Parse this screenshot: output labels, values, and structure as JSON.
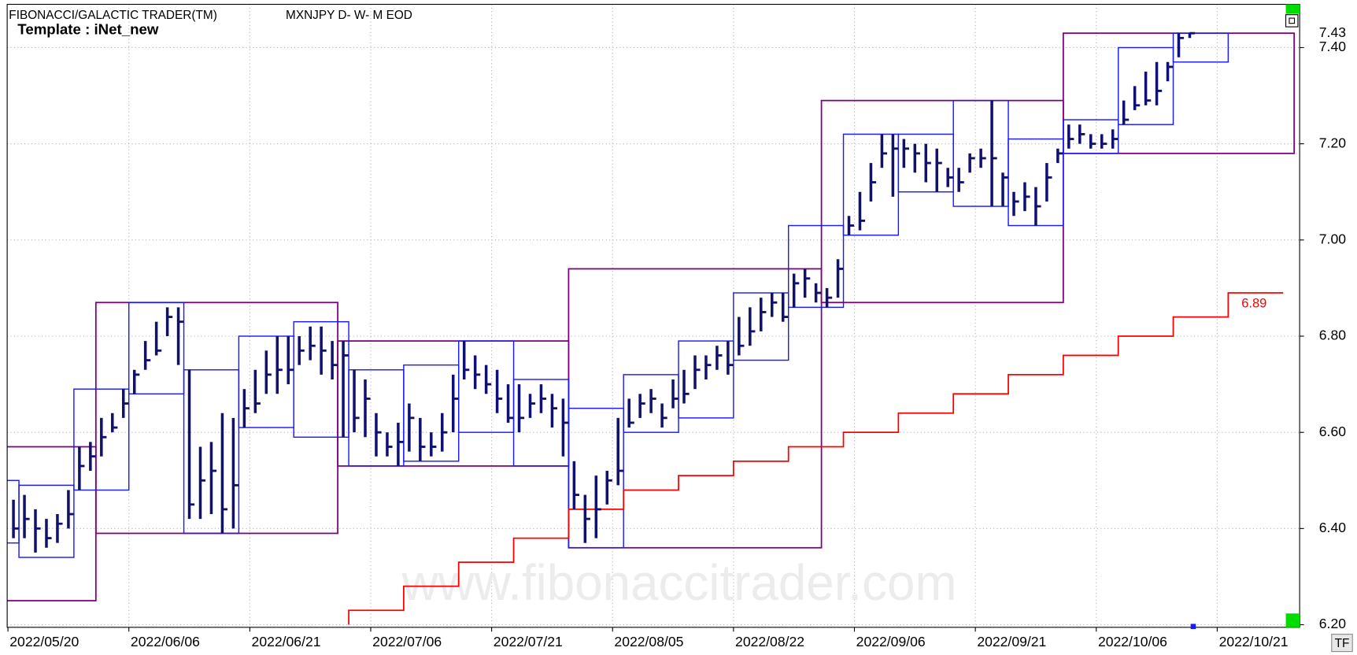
{
  "chart_data": {
    "type": "ohlc",
    "title": "FIBONACCI/GALACTIC TRADER(TM)",
    "subtitle": "MXNJPY D- W- M EOD",
    "template": "Template : iNet_new",
    "watermark": "www.fibonaccitrader.com",
    "button": "TF",
    "high": [
      6.46,
      6.47,
      6.44,
      6.42,
      6.43,
      6.48,
      6.57,
      6.58,
      6.63,
      6.64,
      6.69,
      6.73,
      6.79,
      6.83,
      6.86,
      6.86,
      6.73,
      6.57,
      6.58,
      6.64,
      6.63,
      6.69,
      6.73,
      6.77,
      6.8,
      6.8,
      6.8,
      6.82,
      6.82,
      6.79,
      6.79,
      6.73,
      6.71,
      6.64,
      6.6,
      6.62,
      6.66,
      6.63,
      6.6,
      6.64,
      6.72,
      6.79,
      6.76,
      6.74,
      6.73,
      6.7,
      6.7,
      6.68,
      6.7,
      6.68,
      6.67,
      6.54,
      6.47,
      6.51,
      6.52,
      6.63,
      6.67,
      6.68,
      6.69,
      6.66,
      6.71,
      6.73,
      6.76,
      6.76,
      6.78,
      6.79,
      6.84,
      6.86,
      6.88,
      6.89,
      6.89,
      6.93,
      6.94,
      6.91,
      6.9,
      6.96,
      7.05,
      7.1,
      7.16,
      7.22,
      7.22,
      7.21,
      7.2,
      7.2,
      7.19,
      7.15,
      7.15,
      7.18,
      7.19,
      7.29,
      7.14,
      7.1,
      7.12,
      7.11,
      7.16,
      7.19,
      7.24,
      7.24,
      7.22,
      7.22,
      7.23,
      7.29,
      7.32,
      7.35,
      7.37,
      7.37,
      7.43,
      7.43
    ],
    "low": [
      6.38,
      6.38,
      6.35,
      6.36,
      6.37,
      6.4,
      6.48,
      6.52,
      6.55,
      6.6,
      6.63,
      6.68,
      6.73,
      6.76,
      6.8,
      6.74,
      6.42,
      6.42,
      6.43,
      6.39,
      6.4,
      6.61,
      6.64,
      6.68,
      6.68,
      6.7,
      6.74,
      6.75,
      6.72,
      6.71,
      6.59,
      6.6,
      6.59,
      6.55,
      6.55,
      6.53,
      6.56,
      6.54,
      6.55,
      6.56,
      6.6,
      6.71,
      6.69,
      6.68,
      6.64,
      6.62,
      6.6,
      6.63,
      6.64,
      6.61,
      6.55,
      6.44,
      6.37,
      6.38,
      6.45,
      6.49,
      6.61,
      6.63,
      6.64,
      6.61,
      6.65,
      6.66,
      6.69,
      6.71,
      6.73,
      6.72,
      6.76,
      6.78,
      6.81,
      6.84,
      6.83,
      6.86,
      6.88,
      6.87,
      6.86,
      6.88,
      7.01,
      7.02,
      7.08,
      7.15,
      7.09,
      7.15,
      7.14,
      7.12,
      7.1,
      7.11,
      7.1,
      7.14,
      7.15,
      7.07,
      7.07,
      7.05,
      7.06,
      7.03,
      7.08,
      7.16,
      7.19,
      7.2,
      7.19,
      7.19,
      7.19,
      7.24,
      7.27,
      7.28,
      7.28,
      7.33,
      7.38,
      7.42
    ],
    "close": [
      6.4,
      6.42,
      6.4,
      6.38,
      6.41,
      6.43,
      6.53,
      6.55,
      6.59,
      6.61,
      6.66,
      6.72,
      6.75,
      6.77,
      6.84,
      6.83,
      6.45,
      6.5,
      6.52,
      6.44,
      6.49,
      6.65,
      6.66,
      6.72,
      6.73,
      6.73,
      6.77,
      6.78,
      6.77,
      6.74,
      6.76,
      6.63,
      6.67,
      6.6,
      6.57,
      6.58,
      6.63,
      6.57,
      6.57,
      6.6,
      6.67,
      6.73,
      6.72,
      6.7,
      6.67,
      6.63,
      6.63,
      6.66,
      6.67,
      6.65,
      6.62,
      6.47,
      6.42,
      6.44,
      6.5,
      6.52,
      6.62,
      6.66,
      6.67,
      6.63,
      6.67,
      6.68,
      6.73,
      6.74,
      6.76,
      6.74,
      6.78,
      6.81,
      6.85,
      6.87,
      6.84,
      6.91,
      6.92,
      6.89,
      6.88,
      6.94,
      7.03,
      7.04,
      7.12,
      7.18,
      7.19,
      7.19,
      7.18,
      7.16,
      7.16,
      7.13,
      7.12,
      7.17,
      7.17,
      7.17,
      7.13,
      7.08,
      7.09,
      7.07,
      7.13,
      7.18,
      7.21,
      7.22,
      7.2,
      7.2,
      7.21,
      7.25,
      7.28,
      7.29,
      7.31,
      7.36,
      7.42,
      7.43
    ],
    "weekly_boxes": [
      {
        "first": -4,
        "last": 0,
        "high": 6.5,
        "low": 6.37
      },
      {
        "first": 1,
        "last": 5,
        "high": 6.49,
        "low": 6.34
      },
      {
        "first": 6,
        "last": 10,
        "high": 6.69,
        "low": 6.48
      },
      {
        "first": 11,
        "last": 15,
        "high": 6.87,
        "low": 6.68
      },
      {
        "first": 16,
        "last": 20,
        "high": 6.73,
        "low": 6.39
      },
      {
        "first": 21,
        "last": 25,
        "high": 6.8,
        "low": 6.61
      },
      {
        "first": 26,
        "last": 30,
        "high": 6.83,
        "low": 6.59
      },
      {
        "first": 31,
        "last": 35,
        "high": 6.73,
        "low": 6.53
      },
      {
        "first": 36,
        "last": 40,
        "high": 6.74,
        "low": 6.54
      },
      {
        "first": 41,
        "last": 45,
        "high": 6.79,
        "low": 6.6
      },
      {
        "first": 46,
        "last": 50,
        "high": 6.71,
        "low": 6.53
      },
      {
        "first": 51,
        "last": 55,
        "high": 6.65,
        "low": 6.36
      },
      {
        "first": 56,
        "last": 60,
        "high": 6.72,
        "low": 6.6
      },
      {
        "first": 61,
        "last": 65,
        "high": 6.79,
        "low": 6.63
      },
      {
        "first": 66,
        "last": 70,
        "high": 6.89,
        "low": 6.75
      },
      {
        "first": 71,
        "last": 75,
        "high": 7.03,
        "low": 6.86
      },
      {
        "first": 76,
        "last": 80,
        "high": 7.22,
        "low": 7.01
      },
      {
        "first": 81,
        "last": 85,
        "high": 7.22,
        "low": 7.1
      },
      {
        "first": 86,
        "last": 90,
        "high": 7.29,
        "low": 7.07
      },
      {
        "first": 91,
        "last": 95,
        "high": 7.21,
        "low": 7.03
      },
      {
        "first": 96,
        "last": 100,
        "high": 7.25,
        "low": 7.18
      },
      {
        "first": 101,
        "last": 105,
        "high": 7.4,
        "low": 7.24
      },
      {
        "first": 106,
        "last": 110,
        "high": 7.43,
        "low": 7.37
      }
    ],
    "monthly_boxes": [
      {
        "first": -30,
        "last": 7,
        "high": 6.57,
        "low": 6.25
      },
      {
        "first": 8,
        "last": 29,
        "high": 6.87,
        "low": 6.39
      },
      {
        "first": 30,
        "last": 50,
        "high": 6.79,
        "low": 6.53
      },
      {
        "first": 51,
        "last": 73,
        "high": 6.94,
        "low": 6.36
      },
      {
        "first": 74,
        "last": 95,
        "high": 7.29,
        "low": 6.87
      },
      {
        "first": 96,
        "last": 116,
        "high": 7.43,
        "low": 7.18
      }
    ],
    "trend_line": {
      "color": "#ff0000",
      "x": [
        31,
        36,
        41,
        46,
        51,
        56,
        61,
        66,
        71,
        76,
        81,
        86,
        91,
        96,
        101,
        106,
        111
      ],
      "values": [
        6.23,
        6.28,
        6.33,
        6.38,
        6.44,
        6.48,
        6.51,
        6.54,
        6.57,
        6.6,
        6.64,
        6.68,
        6.72,
        6.76,
        6.8,
        6.84,
        6.89
      ],
      "value_label": "6.89"
    },
    "bar_color": "#101070",
    "weekly_color": "#1a1aff",
    "monthly_color": "#800080",
    "last_price": {
      "value": 7.43,
      "label": "7.43"
    },
    "xlim": [
      -0.57,
      117
    ],
    "ylim": [
      6.2,
      7.49
    ],
    "xticks": [
      {
        "value": 0,
        "label": "2022/05/20"
      },
      {
        "value": 11,
        "label": "2022/06/06"
      },
      {
        "value": 22,
        "label": "2022/06/21"
      },
      {
        "value": 33,
        "label": "2022/07/06"
      },
      {
        "value": 44,
        "label": "2022/07/21"
      },
      {
        "value": 55,
        "label": "2022/08/05"
      },
      {
        "value": 66,
        "label": "2022/08/22"
      },
      {
        "value": 77,
        "label": "2022/09/06"
      },
      {
        "value": 88,
        "label": "2022/09/21"
      },
      {
        "value": 99,
        "label": "2022/10/06"
      },
      {
        "value": 110,
        "label": "2022/10/21"
      }
    ],
    "yticks": [
      {
        "value": 6.2,
        "label": "6.20"
      },
      {
        "value": 6.4,
        "label": "6.40"
      },
      {
        "value": 6.6,
        "label": "6.60"
      },
      {
        "value": 6.8,
        "label": "6.80"
      },
      {
        "value": 7.0,
        "label": "7.00"
      },
      {
        "value": 7.2,
        "label": "7.20"
      },
      {
        "value": 7.4,
        "label": "7.40"
      }
    ],
    "grid": true
  }
}
